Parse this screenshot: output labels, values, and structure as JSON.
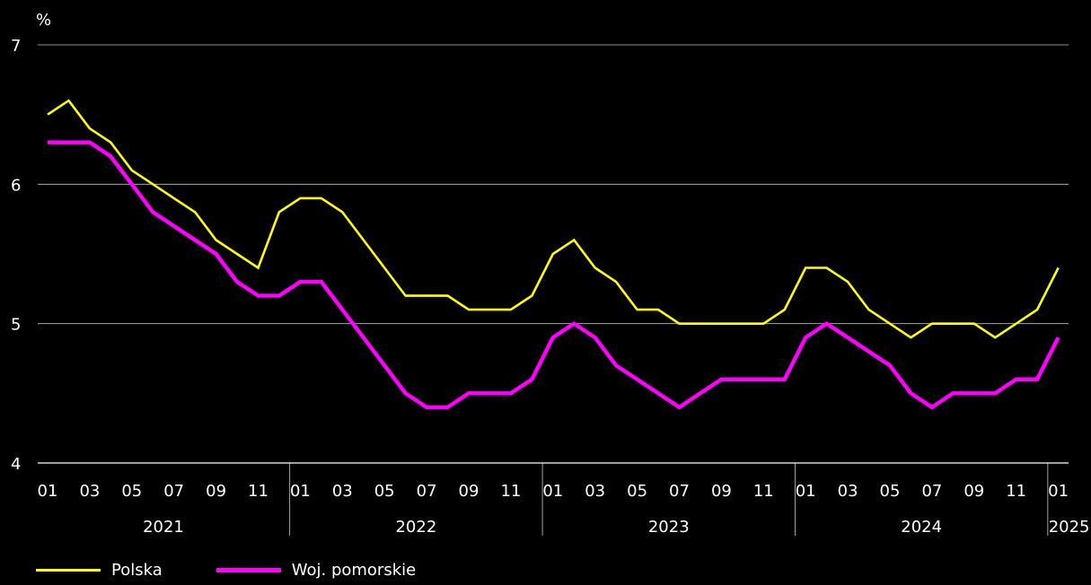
{
  "chart_data": {
    "type": "line",
    "unit_label": "%",
    "ylim": [
      4,
      7
    ],
    "yticks": [
      4,
      5,
      6,
      7
    ],
    "x": [
      "2021-01",
      "2021-02",
      "2021-03",
      "2021-04",
      "2021-05",
      "2021-06",
      "2021-07",
      "2021-08",
      "2021-09",
      "2021-10",
      "2021-11",
      "2021-12",
      "2022-01",
      "2022-02",
      "2022-03",
      "2022-04",
      "2022-05",
      "2022-06",
      "2022-07",
      "2022-08",
      "2022-09",
      "2022-10",
      "2022-11",
      "2022-12",
      "2023-01",
      "2023-02",
      "2023-03",
      "2023-04",
      "2023-05",
      "2023-06",
      "2023-07",
      "2023-08",
      "2023-09",
      "2023-10",
      "2023-11",
      "2023-12",
      "2024-01",
      "2024-02",
      "2024-03",
      "2024-04",
      "2024-05",
      "2024-06",
      "2024-07",
      "2024-08",
      "2024-09",
      "2024-10",
      "2024-11",
      "2024-12",
      "2025-01"
    ],
    "month_tick_labels": [
      "01",
      "03",
      "05",
      "07",
      "09",
      "11",
      "01",
      "03",
      "05",
      "07",
      "09",
      "11",
      "01",
      "03",
      "05",
      "07",
      "09",
      "11",
      "01",
      "03",
      "05",
      "07",
      "09",
      "11",
      "01"
    ],
    "years": [
      "2021",
      "2022",
      "2023",
      "2024",
      "2025"
    ],
    "grid": true,
    "legend_position": "bottom-left",
    "series": [
      {
        "name": "Polska",
        "color": "#ffff00",
        "values": [
          6.5,
          6.6,
          6.4,
          6.3,
          6.1,
          6.0,
          5.9,
          5.8,
          5.6,
          5.5,
          5.4,
          5.8,
          5.9,
          5.9,
          5.8,
          5.6,
          5.4,
          5.2,
          5.2,
          5.2,
          5.1,
          5.1,
          5.1,
          5.2,
          5.5,
          5.6,
          5.4,
          5.3,
          5.1,
          5.1,
          5.0,
          5.0,
          5.0,
          5.0,
          5.0,
          5.1,
          5.4,
          5.4,
          5.3,
          5.1,
          5.0,
          4.9,
          5.0,
          5.0,
          5.0,
          4.9,
          5.0,
          5.1,
          5.4
        ]
      },
      {
        "name": "Woj. pomorskie",
        "color": "#ff00ff",
        "values": [
          6.3,
          6.3,
          6.3,
          6.2,
          6.0,
          5.8,
          5.7,
          5.6,
          5.5,
          5.3,
          5.2,
          5.2,
          5.3,
          5.3,
          5.1,
          4.9,
          4.7,
          4.5,
          4.4,
          4.4,
          4.5,
          4.5,
          4.5,
          4.6,
          4.9,
          5.0,
          4.9,
          4.7,
          4.6,
          4.5,
          4.4,
          4.5,
          4.6,
          4.6,
          4.6,
          4.6,
          4.9,
          5.0,
          4.9,
          4.8,
          4.7,
          4.5,
          4.4,
          4.5,
          4.5,
          4.5,
          4.6,
          4.6,
          4.9
        ]
      }
    ]
  }
}
